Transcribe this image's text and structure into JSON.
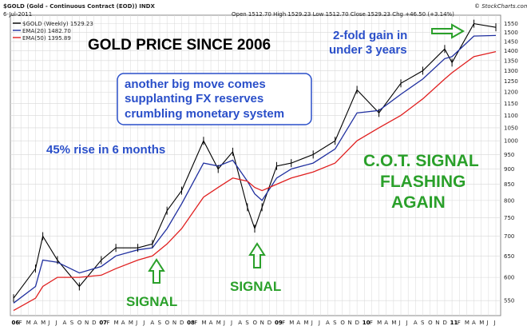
{
  "header": {
    "symbol_line": "$GOLD (Gold - Continuous Contract (EOD)) INDX",
    "date": "6-Jul-2011",
    "quote": "Open 1512.70  High 1529.23  Low 1512.70  Close 1529.23  Chg +46.50 (+3.14%)",
    "watermark": "© StockCharts.com",
    "legend_gold": "$GOLD (Weekly) 1529.23",
    "legend_ema20": "EMA(20) 1482.70",
    "legend_ema50": "EMA(50) 1395.89"
  },
  "annotations": {
    "title": "GOLD PRICE SINCE 2006",
    "gain_line1": "2-fold gain in",
    "gain_line2": "under 3 years",
    "box_line1": "another big move comes",
    "box_line2": "supplanting FX reserves",
    "box_line3": "crumbling monetary system",
    "rise": "45% rise in 6 months",
    "cot_line1": "C.O.T. SIGNAL",
    "cot_line2": "FLASHING",
    "cot_line3": "AGAIN",
    "signal1": "SIGNAL",
    "signal2": "SIGNAL"
  },
  "colors": {
    "price": "#000000",
    "ema20": "#1f2f9f",
    "ema50": "#e02020",
    "annotation_blue": "#2a4fc9",
    "annotation_green": "#2aa02a",
    "grid": "#d8d8d8"
  },
  "chart_data": {
    "type": "line",
    "title": "GOLD PRICE SINCE 2006",
    "ylim": [
      520,
      1600
    ],
    "y_scale": "log",
    "y_axis_side": "right",
    "grid": true,
    "legend_position": "top-left",
    "y_ticks": [
      550,
      600,
      650,
      700,
      750,
      800,
      850,
      900,
      950,
      1000,
      1050,
      1100,
      1150,
      1200,
      1250,
      1300,
      1350,
      1400,
      1450,
      1500,
      1550
    ],
    "x_labels": [
      "06",
      "F",
      "M",
      "A",
      "M",
      "J",
      "J",
      "A",
      "S",
      "O",
      "N",
      "D",
      "07",
      "F",
      "M",
      "A",
      "M",
      "J",
      "J",
      "A",
      "S",
      "O",
      "N",
      "D",
      "08",
      "F",
      "M",
      "A",
      "M",
      "J",
      "J",
      "A",
      "S",
      "O",
      "N",
      "D",
      "09",
      "F",
      "M",
      "A",
      "M",
      "J",
      "J",
      "A",
      "S",
      "O",
      "N",
      "D",
      "10",
      "F",
      "M",
      "A",
      "M",
      "J",
      "J",
      "A",
      "S",
      "O",
      "N",
      "D",
      "11",
      "F",
      "M",
      "A",
      "M",
      "J",
      "J"
    ],
    "x_year_labels": [
      "06",
      "07",
      "08",
      "09",
      "10",
      "11"
    ],
    "x": [
      "2006-01",
      "2006-04",
      "2006-05",
      "2006-07",
      "2006-10",
      "2007-01",
      "2007-03",
      "2007-06",
      "2007-08",
      "2007-10",
      "2007-12",
      "2008-03",
      "2008-05",
      "2008-07",
      "2008-09",
      "2008-10",
      "2008-11",
      "2009-01",
      "2009-03",
      "2009-06",
      "2009-09",
      "2009-12",
      "2010-03",
      "2010-06",
      "2010-09",
      "2010-12",
      "2011-01",
      "2011-04",
      "2011-07"
    ],
    "series": [
      {
        "name": "$GOLD (Weekly)",
        "values": [
          555,
          620,
          700,
          640,
          580,
          640,
          670,
          670,
          680,
          770,
          830,
          1000,
          900,
          960,
          780,
          720,
          780,
          910,
          920,
          950,
          1000,
          1210,
          1110,
          1240,
          1300,
          1410,
          1340,
          1550,
          1529
        ]
      },
      {
        "name": "EMA(20)",
        "values": [
          545,
          580,
          640,
          635,
          610,
          625,
          650,
          665,
          670,
          720,
          790,
          920,
          910,
          930,
          860,
          820,
          800,
          870,
          900,
          920,
          970,
          1110,
          1120,
          1190,
          1260,
          1360,
          1370,
          1480,
          1483
        ]
      },
      {
        "name": "EMA(50)",
        "values": [
          530,
          555,
          580,
          600,
          600,
          605,
          620,
          640,
          650,
          680,
          720,
          810,
          840,
          870,
          860,
          840,
          830,
          850,
          870,
          890,
          920,
          1000,
          1050,
          1100,
          1170,
          1260,
          1290,
          1370,
          1396
        ]
      }
    ]
  }
}
